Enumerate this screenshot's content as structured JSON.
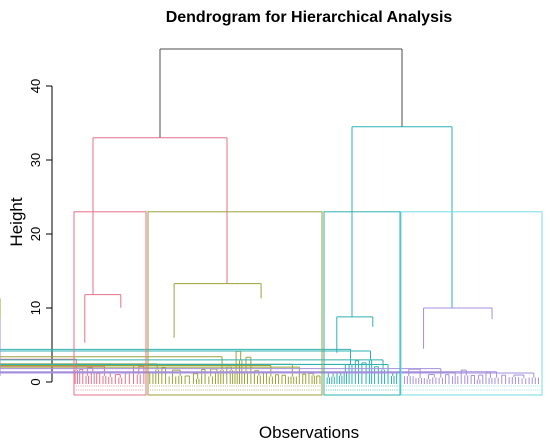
{
  "chart_data": {
    "type": "dendrogram",
    "title": "Dendrogram for Hierarchical Analysis",
    "xlabel": "Observations",
    "ylabel": "Height",
    "ylim": [
      0,
      45
    ],
    "yticks": [
      0,
      10,
      20,
      30,
      40
    ],
    "cut_height": 23,
    "root_height": 45,
    "merges": [
      {
        "name": "root",
        "height": 45
      },
      {
        "name": "left-supercluster",
        "height": 33
      },
      {
        "name": "right-supercluster",
        "height": 34.5
      },
      {
        "name": "cluster-3-top",
        "height": 13.3
      },
      {
        "name": "cluster-1-top",
        "height": 11.8
      },
      {
        "name": "cluster-5-top",
        "height": 10
      },
      {
        "name": "cluster-4-top",
        "height": 8.8
      }
    ],
    "clusters": [
      {
        "id": 1,
        "color": "#e5718c",
        "range": [
          0,
          80
        ],
        "top_height": 11.8
      },
      {
        "id": 2,
        "color": "#9ba23a",
        "range": [
          80,
          280
        ],
        "top_height": 13.3
      },
      {
        "id": 3,
        "color": "#2fb0b0",
        "range": [
          280,
          350
        ],
        "top_height": 8.8
      },
      {
        "id": 4,
        "color": "#a58fdc",
        "range": [
          350,
          500
        ],
        "top_height": 10
      },
      {
        "id": 5,
        "color": "#74dde6",
        "range": [
          350,
          500
        ],
        "top_height": 0
      }
    ],
    "root_color": "#4d4d4d",
    "grid": false,
    "legend": "none"
  }
}
